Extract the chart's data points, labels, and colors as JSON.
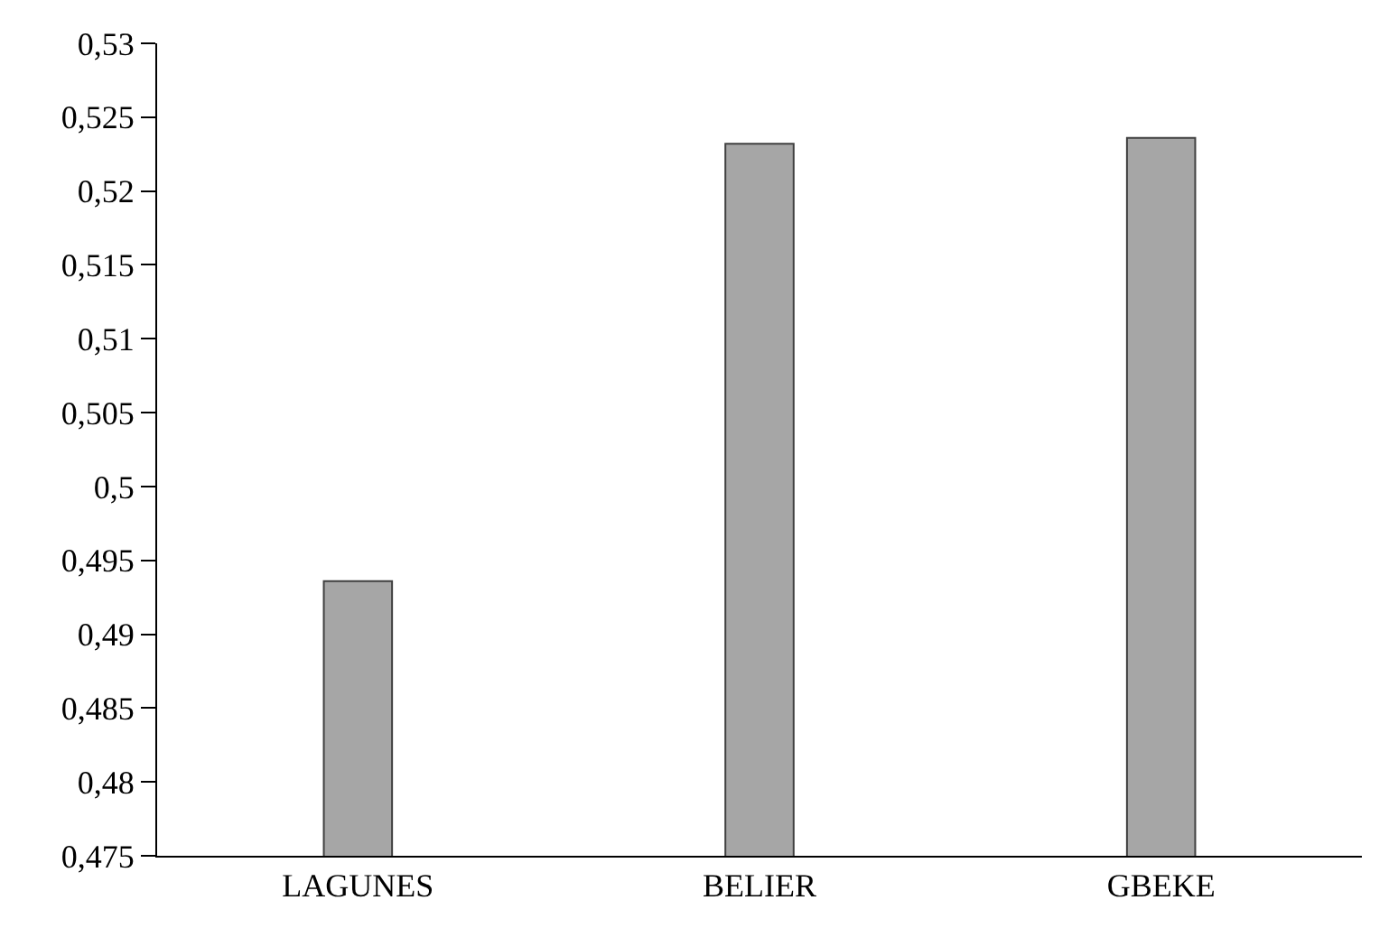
{
  "chart_data": {
    "type": "bar",
    "categories": [
      "LAGUNES",
      "BELIER",
      "GBEKE"
    ],
    "series": [
      {
        "color": "#a6a6a6",
        "values": [
          0.4936,
          0.5232,
          0.5236
        ]
      }
    ],
    "ylim": [
      0.475,
      0.53
    ],
    "yticks": [
      {
        "value": 0.475,
        "label": "0,475"
      },
      {
        "value": 0.48,
        "label": "0,48"
      },
      {
        "value": 0.485,
        "label": "0,485"
      },
      {
        "value": 0.49,
        "label": "0,49"
      },
      {
        "value": 0.495,
        "label": "0,495"
      },
      {
        "value": 0.5,
        "label": "0,5"
      },
      {
        "value": 0.505,
        "label": "0,505"
      },
      {
        "value": 0.51,
        "label": "0,51"
      },
      {
        "value": 0.515,
        "label": "0,515"
      },
      {
        "value": 0.52,
        "label": "0,52"
      },
      {
        "value": 0.525,
        "label": "0,525"
      },
      {
        "value": 0.53,
        "label": "0,53"
      }
    ],
    "grid": false
  }
}
